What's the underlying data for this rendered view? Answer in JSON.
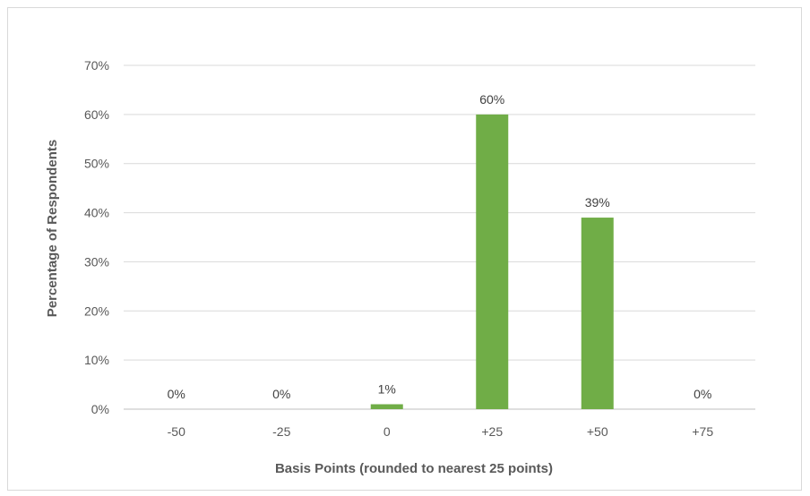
{
  "chart_data": {
    "type": "bar",
    "title": "",
    "xlabel": "Basis Points (rounded to nearest 25 points)",
    "ylabel": "Percentage of Respondents",
    "categories": [
      "-50",
      "-25",
      "0",
      "+25",
      "+50",
      "+75"
    ],
    "values": [
      0,
      0,
      1,
      60,
      39,
      0
    ],
    "data_labels": [
      "0%",
      "0%",
      "1%",
      "60%",
      "39%",
      "0%"
    ],
    "ylim": [
      0,
      70
    ],
    "yticks": [
      0,
      10,
      20,
      30,
      40,
      50,
      60,
      70
    ],
    "ytick_labels": [
      "0%",
      "10%",
      "20%",
      "30%",
      "40%",
      "50%",
      "60%",
      "70%"
    ],
    "grid": true,
    "legend": "none",
    "bar_color": "#70ad47"
  }
}
